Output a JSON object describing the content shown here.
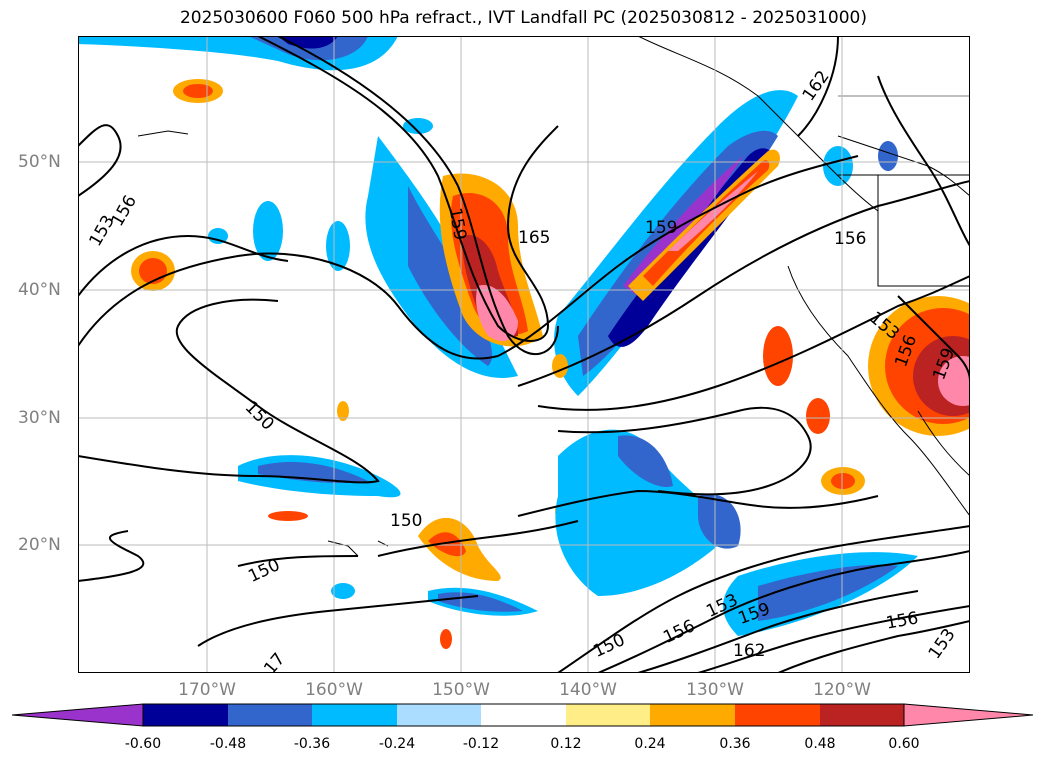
{
  "title": "2025030600 F060 500 hPa refract., IVT Landfall PC (2025030812 - 2025031000)",
  "lat_labels": [
    "50°N",
    "40°N",
    "30°N",
    "20°N"
  ],
  "lon_labels": [
    "170°W",
    "160°W",
    "150°W",
    "140°W",
    "130°W",
    "120°W"
  ],
  "contour_labels": [
    "162",
    "159",
    "156",
    "153",
    "150",
    "165",
    "159",
    "156",
    "153",
    "156",
    "159",
    "150",
    "150",
    "150",
    "153",
    "159",
    "156",
    "162",
    "156",
    "153",
    "150",
    "17"
  ],
  "colorbar": {
    "ticks": [
      "-0.60",
      "-0.48",
      "-0.36",
      "-0.24",
      "-0.12",
      "0.12",
      "0.24",
      "0.36",
      "0.48",
      "0.60"
    ],
    "colors": [
      "#9933cc",
      "#000099",
      "#3366cc",
      "#00bbff",
      "#aaddff",
      "#ffffff",
      "#ffee88",
      "#ffaa00",
      "#ff4400",
      "#bb2222",
      "#ff88aa"
    ]
  }
}
